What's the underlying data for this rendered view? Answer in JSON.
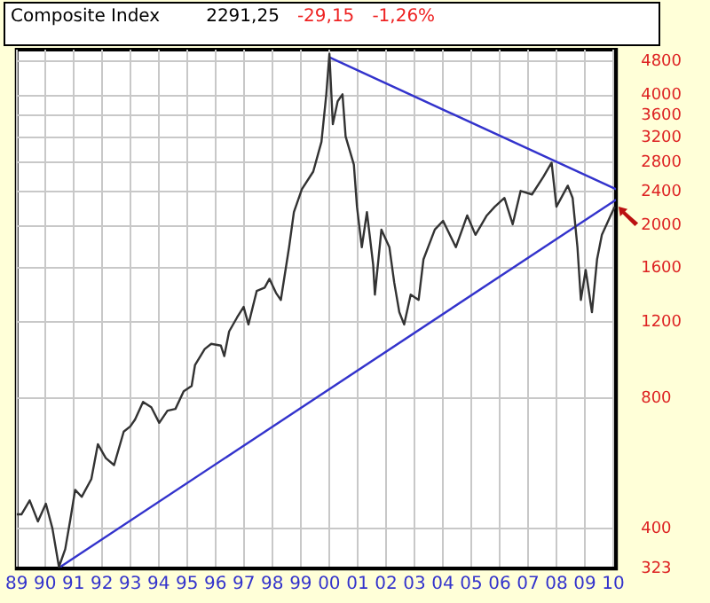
{
  "chart_data": {
    "type": "line",
    "title": "Composite Index",
    "annotations": [
      "2291,25",
      "-29,15",
      "-1,26%"
    ],
    "xlim": [
      1989,
      2010.1
    ],
    "xticks": [
      {
        "value": 1989,
        "label": "89"
      },
      {
        "value": 1990,
        "label": "90"
      },
      {
        "value": 1991,
        "label": "91"
      },
      {
        "value": 1992,
        "label": "92"
      },
      {
        "value": 1993,
        "label": "93"
      },
      {
        "value": 1994,
        "label": "94"
      },
      {
        "value": 1995,
        "label": "95"
      },
      {
        "value": 1996,
        "label": "96"
      },
      {
        "value": 1997,
        "label": "97"
      },
      {
        "value": 1998,
        "label": "98"
      },
      {
        "value": 1999,
        "label": "99"
      },
      {
        "value": 2000,
        "label": "00"
      },
      {
        "value": 2001,
        "label": "01"
      },
      {
        "value": 2002,
        "label": "02"
      },
      {
        "value": 2003,
        "label": "03"
      },
      {
        "value": 2004,
        "label": "04"
      },
      {
        "value": 2005,
        "label": "05"
      },
      {
        "value": 2006,
        "label": "06"
      },
      {
        "value": 2007,
        "label": "07"
      },
      {
        "value": 2008,
        "label": "08"
      },
      {
        "value": 2009,
        "label": "09"
      },
      {
        "value": 2010,
        "label": "10"
      }
    ],
    "ylim": [
      323,
      5100
    ],
    "yticks": [
      323,
      400,
      800,
      1200,
      1600,
      2000,
      2400,
      2800,
      3200,
      3600,
      4000,
      4800
    ],
    "log": "y",
    "grid": true,
    "legend": false,
    "marker": "none",
    "line_style": "solid",
    "series": [
      {
        "color": "#333333",
        "x": [
          1989.0,
          1989.17,
          1989.46,
          1989.75,
          1990.03,
          1990.26,
          1990.49,
          1990.71,
          1990.89,
          1991.06,
          1991.29,
          1991.63,
          1991.86,
          1992.14,
          1992.43,
          1992.77,
          1993.0,
          1993.17,
          1993.45,
          1993.74,
          1994.02,
          1994.31,
          1994.59,
          1994.88,
          1995.16,
          1995.28,
          1995.62,
          1995.85,
          1996.19,
          1996.31,
          1996.48,
          1996.76,
          1996.99,
          1997.16,
          1997.45,
          1997.73,
          1997.9,
          1998.13,
          1998.3,
          1998.59,
          1998.76,
          1999.04,
          1999.44,
          1999.73,
          1999.9,
          2000.01,
          2000.13,
          2000.3,
          2000.47,
          2000.58,
          2000.87,
          2000.98,
          2001.15,
          2001.33,
          2001.55,
          2001.61,
          2001.84,
          2002.12,
          2002.29,
          2002.47,
          2002.64,
          2002.87,
          2003.15,
          2003.32,
          2003.72,
          2004.01,
          2004.46,
          2004.86,
          2005.15,
          2005.55,
          2005.83,
          2006.17,
          2006.46,
          2006.74,
          2007.14,
          2007.54,
          2007.83,
          2008.0,
          2008.4,
          2008.57,
          2008.74,
          2008.86,
          2009.03,
          2009.25,
          2009.43,
          2009.6,
          2009.88,
          2010.05
        ],
        "values": [
          431,
          431,
          464,
          415,
          456,
          400,
          326,
          358,
          419,
          491,
          473,
          520,
          626,
          581,
          560,
          669,
          688,
          714,
          784,
          762,
          701,
          748,
          755,
          829,
          853,
          954,
          1038,
          1067,
          1057,
          1000,
          1140,
          1228,
          1299,
          1183,
          1413,
          1439,
          1508,
          1399,
          1348,
          1784,
          2151,
          2428,
          2667,
          3126,
          4023,
          4988,
          3430,
          3876,
          4023,
          3215,
          2768,
          2212,
          1784,
          2151,
          1625,
          1386,
          1959,
          1784,
          1480,
          1263,
          1183,
          1386,
          1348,
          1672,
          1959,
          2053,
          1784,
          2112,
          1905,
          2112,
          2212,
          2318,
          2015,
          2406,
          2362,
          2593,
          2796,
          2212,
          2474,
          2318,
          1784,
          1348,
          1580,
          1263,
          1672,
          1905,
          2092,
          2212
        ]
      },
      {
        "color": "#3333cc",
        "x": [
          2000.01,
          2010.1
        ],
        "values": [
          4897,
          2428
        ]
      },
      {
        "color": "#3333cc",
        "x": [
          1990.54,
          2010.1
        ],
        "values": [
          326,
          2297
        ]
      }
    ]
  }
}
